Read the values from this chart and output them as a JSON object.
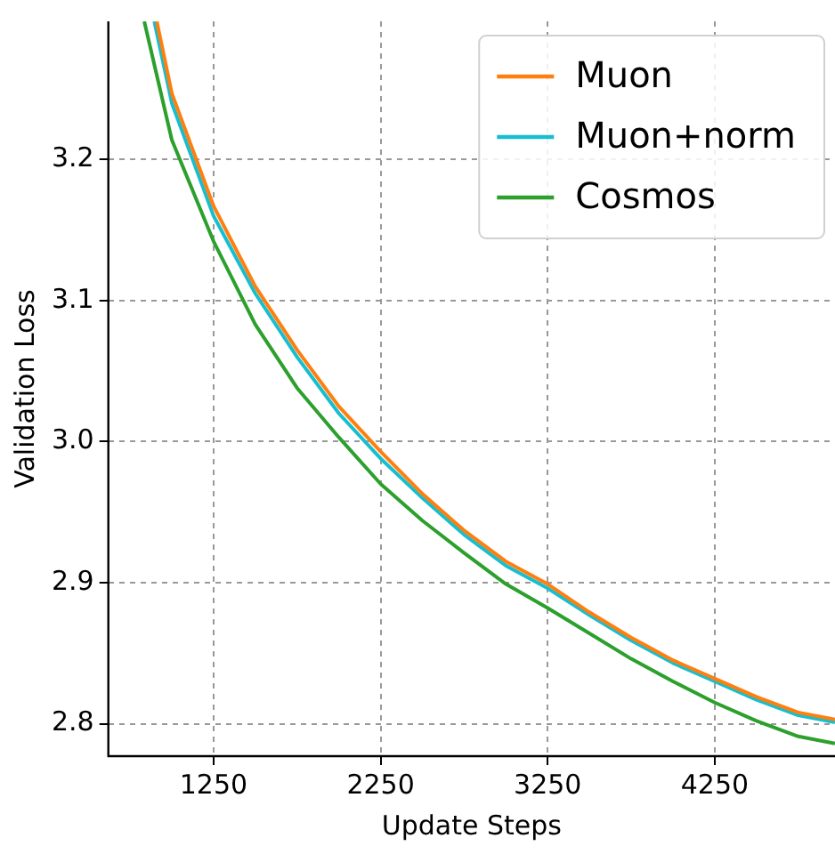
{
  "chart_data": {
    "type": "line",
    "xlabel": "Update Steps",
    "ylabel": "Validation Loss",
    "xlim": [
      620,
      4970
    ],
    "xticks": [
      1250,
      2250,
      3250,
      4250
    ],
    "ylim": [
      2.777,
      3.298
    ],
    "yticks": [
      2.8,
      2.9,
      {
        "value": 3.0,
        "label": "3.0"
      },
      3.1,
      3.2
    ],
    "grid": true,
    "legend": "top right",
    "line_style": "solid",
    "marker": "none",
    "series": [
      {
        "name": "Muon",
        "color": "#ff7f0e",
        "x": [
          910,
          1000,
          1250,
          1500,
          1750,
          2000,
          2250,
          2500,
          2750,
          3000,
          3250,
          3500,
          3750,
          4000,
          4250,
          4500,
          4750,
          4970
        ],
        "values": [
          3.298,
          3.247,
          3.167,
          3.11,
          3.065,
          3.025,
          2.993,
          2.963,
          2.937,
          2.915,
          2.899,
          2.879,
          2.861,
          2.845,
          2.832,
          2.819,
          2.808,
          2.803
        ]
      },
      {
        "name": "Muon+norm",
        "color": "#17becf",
        "x": [
          895,
          1000,
          1250,
          1500,
          1750,
          2000,
          2250,
          2500,
          2750,
          3000,
          3250,
          3500,
          3750,
          4000,
          4250,
          4500,
          4750,
          4970
        ],
        "values": [
          3.298,
          3.24,
          3.16,
          3.105,
          3.06,
          3.02,
          2.988,
          2.96,
          2.934,
          2.912,
          2.896,
          2.877,
          2.859,
          2.843,
          2.83,
          2.817,
          2.806,
          2.801
        ]
      },
      {
        "name": "Cosmos",
        "color": "#2ca02c",
        "x": [
          835,
          1000,
          1250,
          1500,
          1750,
          2000,
          2250,
          2500,
          2750,
          3000,
          3250,
          3500,
          3750,
          4000,
          4250,
          4500,
          4750,
          4970
        ],
        "values": [
          3.298,
          3.214,
          3.142,
          3.083,
          3.038,
          3.003,
          2.97,
          2.944,
          2.921,
          2.899,
          2.882,
          2.864,
          2.846,
          2.83,
          2.815,
          2.802,
          2.791,
          2.786
        ]
      }
    ]
  }
}
